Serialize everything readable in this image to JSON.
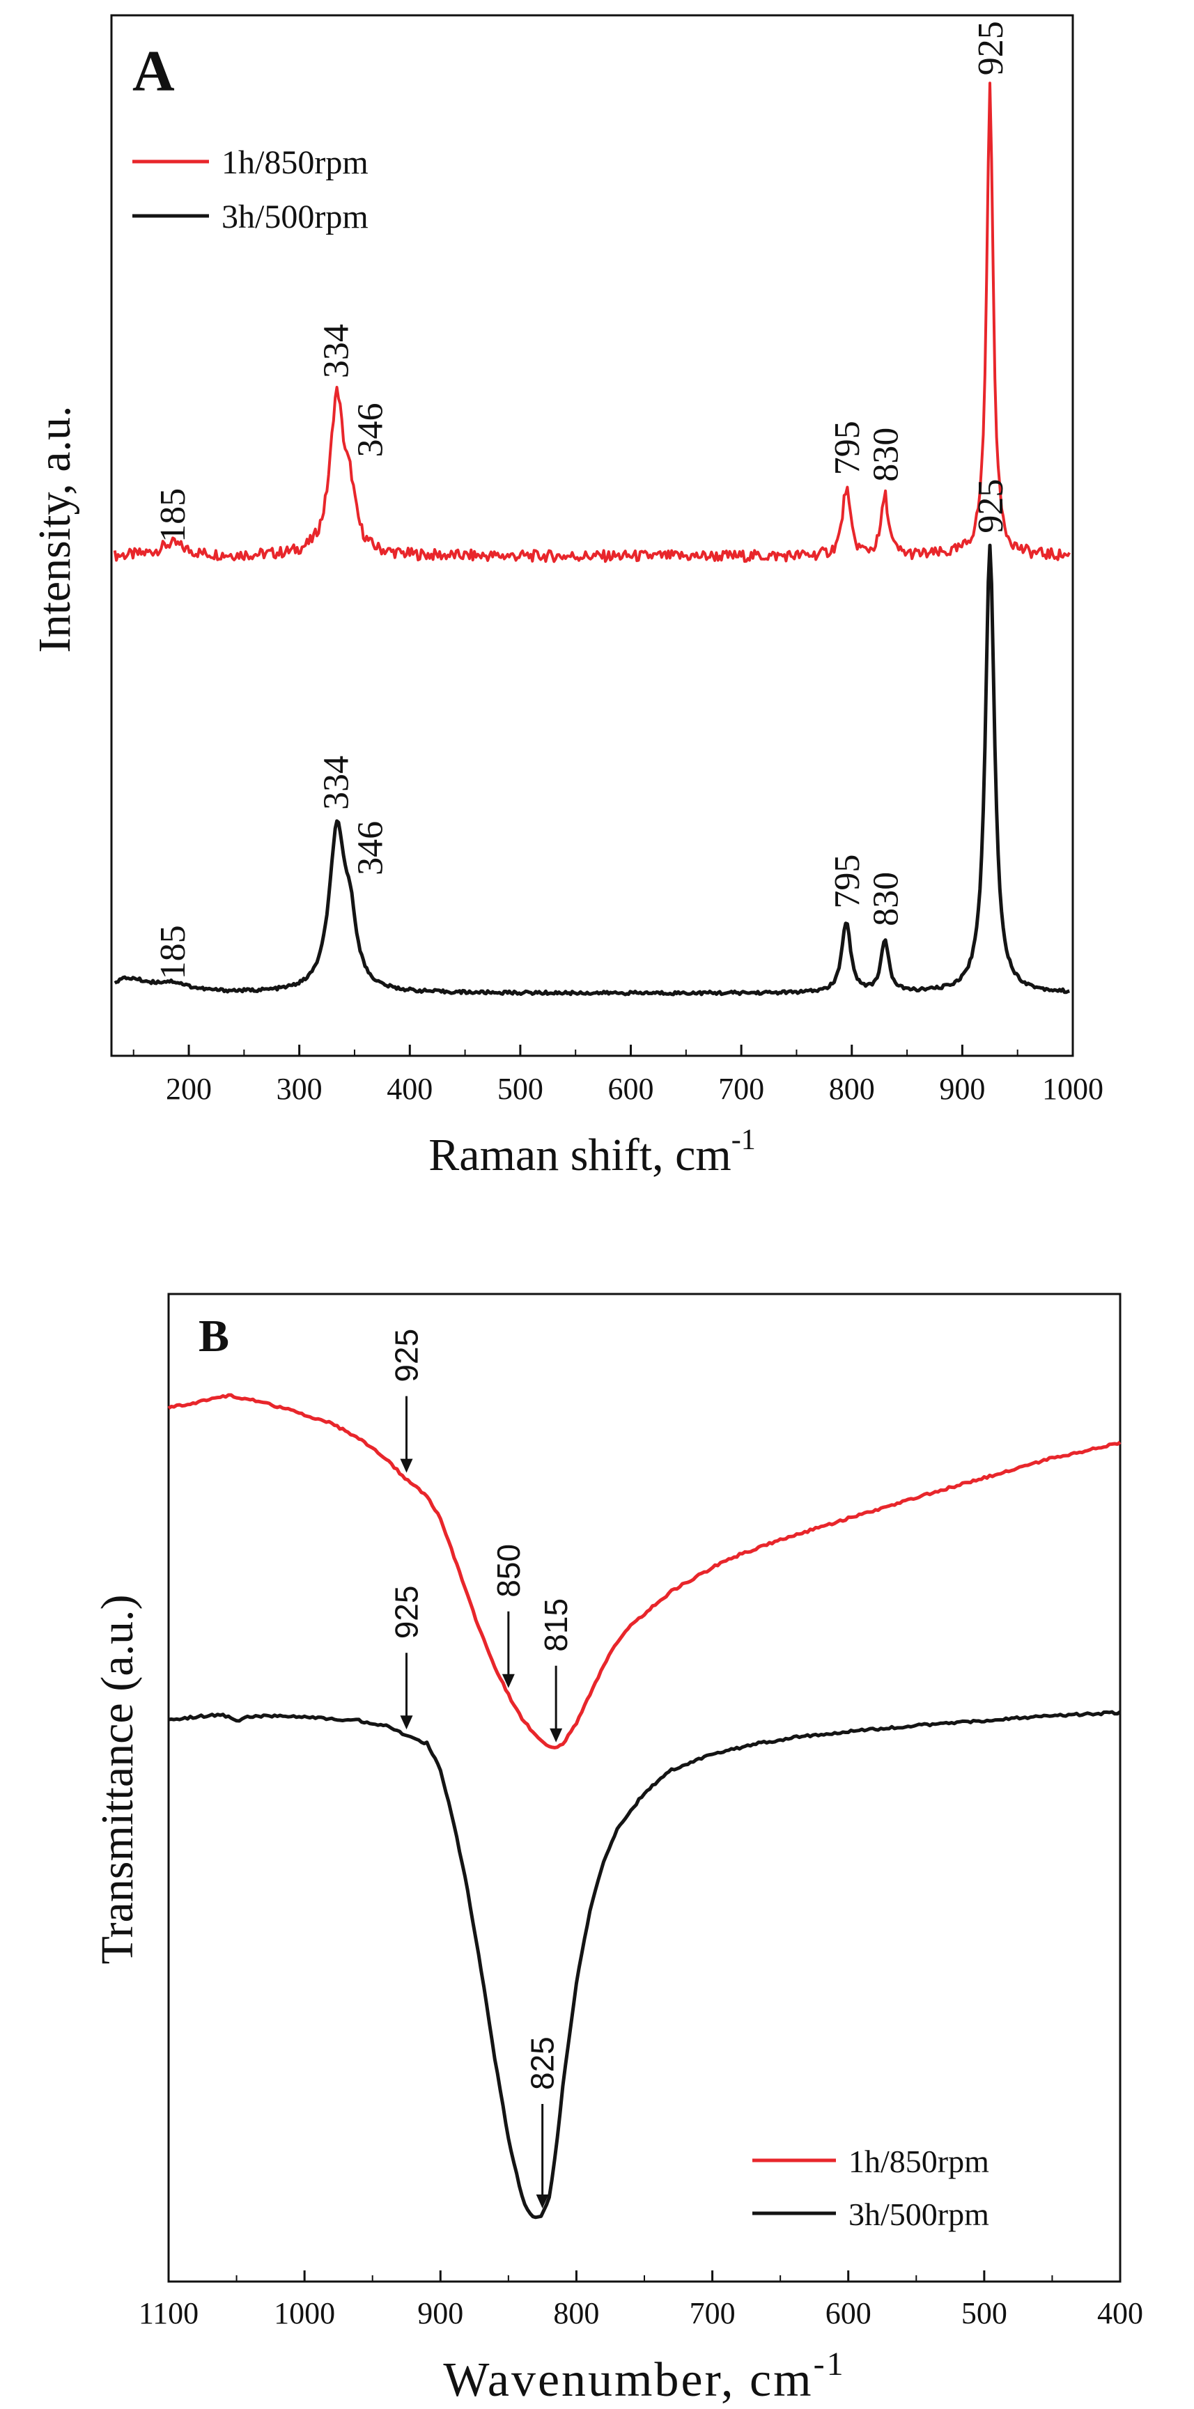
{
  "colors": {
    "red": "#e8262b",
    "black": "#141414",
    "axis": "#111111"
  },
  "chart_data": [
    {
      "type": "line",
      "panel_label": "A",
      "xlabel": "Raman shift, cm",
      "xlabel_sup": "-1",
      "ylabel": "Intensity, a.u.",
      "xlim": [
        130,
        1000
      ],
      "ylim": [
        0,
        100
      ],
      "x_ticks": [
        "200",
        "300",
        "400",
        "500",
        "600",
        "700",
        "800",
        "900",
        "1000"
      ],
      "legend": {
        "position": "top-left",
        "entries": [
          "1h/850rpm",
          "3h/500rpm"
        ]
      },
      "series": [
        {
          "name": "1h/850rpm",
          "color": "#e8262b",
          "baseline": 48,
          "noise": 0.55,
          "peaks": [
            {
              "x": 185,
              "height": 1.2,
              "width": 14
            },
            {
              "x": 334,
              "height": 15,
              "width": 7.5
            },
            {
              "x": 346,
              "height": 4.5,
              "width": 6
            },
            {
              "x": 795,
              "height": 6.5,
              "width": 4.2
            },
            {
              "x": 830,
              "height": 5.8,
              "width": 3.8
            },
            {
              "x": 925,
              "height": 45,
              "width": 3.6
            }
          ],
          "annotations": [
            {
              "x": 185,
              "label": "185"
            },
            {
              "x": 334,
              "label": "334"
            },
            {
              "x": 346,
              "label": "346"
            },
            {
              "x": 795,
              "label": "795"
            },
            {
              "x": 830,
              "label": "830"
            },
            {
              "x": 925,
              "label": "925"
            }
          ]
        },
        {
          "name": "3h/500rpm",
          "color": "#141414",
          "baseline": 6,
          "noise": 0.15,
          "peaks": [
            {
              "x": 145,
              "height": 1.3,
              "width": 22
            },
            {
              "x": 185,
              "height": 0.8,
              "width": 18
            },
            {
              "x": 334,
              "height": 15,
              "width": 8.5
            },
            {
              "x": 346,
              "height": 5.5,
              "width": 7
            },
            {
              "x": 795,
              "height": 6.8,
              "width": 4.8
            },
            {
              "x": 830,
              "height": 5,
              "width": 4.2
            },
            {
              "x": 925,
              "height": 43,
              "width": 5
            }
          ],
          "annotations": [
            {
              "x": 185,
              "label": "185"
            },
            {
              "x": 334,
              "label": "334"
            },
            {
              "x": 346,
              "label": "346"
            },
            {
              "x": 795,
              "label": "795"
            },
            {
              "x": 830,
              "label": "830"
            },
            {
              "x": 925,
              "label": "925"
            }
          ]
        }
      ]
    },
    {
      "type": "line",
      "panel_label": "B",
      "xlabel": "Wavenumber, cm",
      "xlabel_sup": "-1",
      "ylabel": "Transmittance (a.u.)",
      "xlim": [
        1100,
        400
      ],
      "ylim": [
        0,
        100
      ],
      "x_ticks": [
        "1100",
        "1000",
        "900",
        "800",
        "700",
        "600",
        "500",
        "400"
      ],
      "legend": {
        "position": "bottom-right",
        "entries": [
          "1h/850rpm",
          "3h/500rpm"
        ]
      },
      "series": [
        {
          "name": "1h/850rpm",
          "color": "#e8262b",
          "points": [
            [
              1100,
              88.5
            ],
            [
              1080,
              89.0
            ],
            [
              1055,
              89.7
            ],
            [
              1030,
              89.0
            ],
            [
              1000,
              87.8
            ],
            [
              980,
              86.9
            ],
            [
              960,
              85.4
            ],
            [
              940,
              83.3
            ],
            [
              925,
              81.2
            ],
            [
              910,
              79.6
            ],
            [
              900,
              77.2
            ],
            [
              890,
              73.4
            ],
            [
              880,
              69.4
            ],
            [
              870,
              65.6
            ],
            [
              860,
              62.2
            ],
            [
              850,
              59.4
            ],
            [
              840,
              57.0
            ],
            [
              830,
              55.3
            ],
            [
              820,
              54.2
            ],
            [
              815,
              53.9
            ],
            [
              810,
              54.4
            ],
            [
              800,
              56.5
            ],
            [
              790,
              59.5
            ],
            [
              780,
              62.4
            ],
            [
              770,
              64.7
            ],
            [
              760,
              66.4
            ],
            [
              745,
              68.2
            ],
            [
              730,
              69.9
            ],
            [
              700,
              72.3
            ],
            [
              680,
              73.6
            ],
            [
              650,
              75.1
            ],
            [
              600,
              77.3
            ],
            [
              550,
              79.4
            ],
            [
              500,
              81.4
            ],
            [
              450,
              83.4
            ],
            [
              420,
              84.3
            ],
            [
              400,
              84.9
            ]
          ],
          "annotations": [
            {
              "x": 925,
              "label": "925"
            },
            {
              "x": 850,
              "label": "850"
            },
            {
              "x": 815,
              "label": "815"
            }
          ]
        },
        {
          "name": "3h/500rpm",
          "color": "#141414",
          "points": [
            [
              1100,
              56.8
            ],
            [
              1080,
              57.2
            ],
            [
              1060,
              57.4
            ],
            [
              1050,
              56.8
            ],
            [
              1040,
              57.2
            ],
            [
              1020,
              57.3
            ],
            [
              1000,
              57.2
            ],
            [
              960,
              56.8
            ],
            [
              940,
              56.3
            ],
            [
              930,
              55.7
            ],
            [
              925,
              55.2
            ],
            [
              910,
              54.5
            ],
            [
              900,
              51.8
            ],
            [
              890,
              46.3
            ],
            [
              880,
              39.6
            ],
            [
              870,
              31.5
            ],
            [
              860,
              22.6
            ],
            [
              850,
              14.4
            ],
            [
              840,
              8.6
            ],
            [
              835,
              6.9
            ],
            [
              830,
              6.4
            ],
            [
              825,
              6.7
            ],
            [
              820,
              8.6
            ],
            [
              815,
              13.2
            ],
            [
              810,
              19.8
            ],
            [
              800,
              30.2
            ],
            [
              790,
              37.6
            ],
            [
              780,
              42.5
            ],
            [
              770,
              45.8
            ],
            [
              750,
              49.5
            ],
            [
              730,
              51.8
            ],
            [
              700,
              53.4
            ],
            [
              670,
              54.4
            ],
            [
              640,
              55.1
            ],
            [
              600,
              55.7
            ],
            [
              550,
              56.3
            ],
            [
              500,
              56.8
            ],
            [
              450,
              57.3
            ],
            [
              400,
              57.6
            ]
          ],
          "annotations": [
            {
              "x": 925,
              "label": "925"
            },
            {
              "x": 825,
              "label": "825"
            }
          ]
        }
      ]
    }
  ]
}
